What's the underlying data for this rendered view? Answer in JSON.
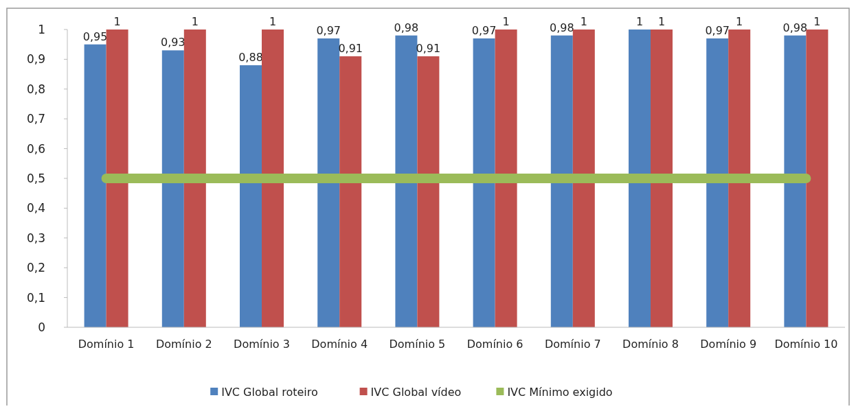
{
  "chart_data": {
    "type": "bar",
    "categories": [
      "Domínio 1",
      "Domínio 2",
      "Domínio 3",
      "Domínio 4",
      "Domínio 5",
      "Domínio 6",
      "Domínio 7",
      "Domínio 8",
      "Domínio 9",
      "Domínio 10"
    ],
    "series": [
      {
        "name": "IVC Global roteiro",
        "color": "#4f81bd",
        "values": [
          0.95,
          0.93,
          0.88,
          0.97,
          0.98,
          0.97,
          0.98,
          1,
          0.97,
          0.98
        ],
        "value_labels": [
          "0,95",
          "0,93",
          "0,88",
          "0,97",
          "0,98",
          "0,97",
          "0,98",
          "1",
          "0,97",
          "0,98"
        ]
      },
      {
        "name": "IVC Global vídeo",
        "color": "#c0504d",
        "values": [
          1,
          1,
          1,
          0.91,
          0.91,
          1,
          1,
          1,
          1,
          1
        ],
        "value_labels": [
          "1",
          "1",
          "1",
          "0,91",
          "0,91",
          "1",
          "1",
          "1",
          "1",
          "1"
        ]
      },
      {
        "name": "IVC Mínimo exigido",
        "type": "line",
        "color": "#9bbb59",
        "values": [
          0.5,
          0.5,
          0.5,
          0.5,
          0.5,
          0.5,
          0.5,
          0.5,
          0.5,
          0.5
        ]
      }
    ],
    "ylim": [
      0,
      1
    ],
    "yticks": [
      0,
      {
        "value": 0.1,
        "label": "0,1"
      },
      {
        "value": 0.2,
        "label": "0,2"
      },
      {
        "value": 0.3,
        "label": "0,3"
      },
      {
        "value": 0.4,
        "label": "0,4"
      },
      {
        "value": 0.5,
        "label": "0,5"
      },
      {
        "value": 0.6,
        "label": "0,6"
      },
      {
        "value": 0.7,
        "label": "0,7"
      },
      {
        "value": 0.8,
        "label": "0,8"
      },
      {
        "value": 0.9,
        "label": "0,9"
      },
      1
    ],
    "grid": false,
    "legend": "bottom"
  }
}
